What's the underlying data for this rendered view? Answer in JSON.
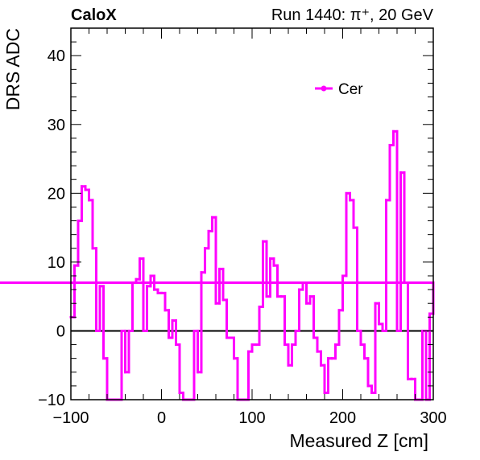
{
  "header": {
    "logo_text": "CaloX",
    "run_info": "Run 1440:   π⁺, 20 GeV"
  },
  "chart_data": {
    "type": "step",
    "xlabel": "Measured Z [cm]",
    "ylabel": "DRS ADC",
    "xlim": [
      -100,
      300
    ],
    "ylim": [
      -10,
      44
    ],
    "x_ticks": [
      -100,
      0,
      100,
      200,
      300
    ],
    "y_ticks": [
      -10,
      0,
      10,
      20,
      30,
      40
    ],
    "x_tick_labels": [
      "−100",
      "0",
      "100",
      "200",
      "300"
    ],
    "y_tick_labels": [
      "−10",
      "0",
      "10",
      "20",
      "30",
      "40"
    ],
    "reference_line_y": 0,
    "legend_position": "top-right",
    "grid": false,
    "series": [
      {
        "name": "Cer",
        "color": "#ff00ff",
        "bin_edges": [
          -100,
          -96,
          -92,
          -88,
          -84,
          -80,
          -76,
          -72,
          -68,
          -64,
          -60,
          -56,
          -52,
          -48,
          -44,
          -40,
          -36,
          -32,
          -28,
          -24,
          -20,
          -16,
          -12,
          -8,
          -4,
          0,
          4,
          8,
          12,
          16,
          20,
          24,
          28,
          32,
          36,
          40,
          44,
          48,
          52,
          56,
          60,
          64,
          68,
          72,
          76,
          80,
          84,
          88,
          92,
          96,
          100,
          104,
          108,
          112,
          116,
          120,
          124,
          128,
          132,
          136,
          140,
          144,
          148,
          152,
          156,
          160,
          164,
          168,
          172,
          176,
          180,
          184,
          188,
          192,
          196,
          200,
          204,
          208,
          212,
          216,
          220,
          224,
          228,
          232,
          236,
          240,
          244,
          248,
          252,
          256,
          260,
          264,
          268,
          272,
          276,
          280,
          284,
          288,
          292,
          296,
          300
        ],
        "values": [
          2,
          9.5,
          16,
          21,
          20.5,
          19,
          12,
          0,
          6.5,
          -4,
          -10,
          -10,
          -10,
          -10,
          0,
          -6,
          0,
          7,
          7.5,
          10.5,
          0,
          6.5,
          8,
          6,
          5.5,
          5.5,
          3,
          -1,
          1.5,
          -2,
          -9,
          -10,
          -10,
          -10,
          0,
          -6,
          8.5,
          12,
          14.5,
          16.5,
          4,
          9,
          4.5,
          -1,
          -1,
          -4,
          -10,
          -10,
          -10,
          -3,
          -2,
          -2,
          3.5,
          13,
          5,
          10.5,
          9.5,
          5,
          5,
          -2,
          -5,
          -2,
          0,
          6,
          7,
          4,
          5,
          -1,
          -3,
          -5,
          -9,
          -4,
          -4,
          -2,
          3,
          8,
          20,
          19,
          15,
          0,
          -2,
          -4,
          -8,
          -9,
          4,
          1,
          0,
          19,
          27,
          29,
          0,
          23,
          7,
          -7,
          -7,
          -10,
          -10,
          0,
          -10,
          2.5,
          7
        ]
      }
    ]
  }
}
